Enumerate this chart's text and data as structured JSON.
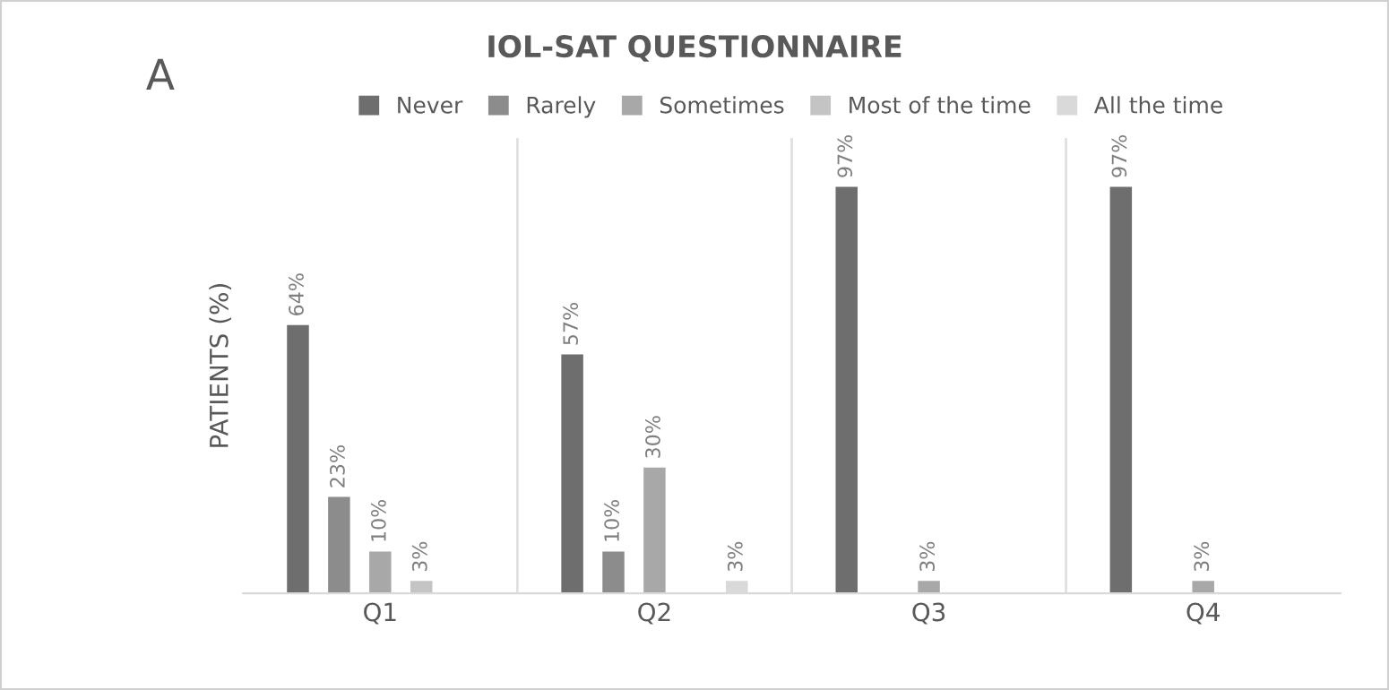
{
  "chart_data": {
    "type": "bar",
    "title": "IOL-SAT QUESTIONNAIRE",
    "ylabel": "PATIENTS (%)",
    "annotations": [
      "A"
    ],
    "categories": [
      "Q1",
      "Q2",
      "Q3",
      "Q4"
    ],
    "series": [
      {
        "name": "Never",
        "color": "#6e6e6e",
        "values": [
          64,
          57,
          97,
          97
        ],
        "value_labels": [
          "64%",
          "57%",
          "97%",
          "97%"
        ]
      },
      {
        "name": "Rarely",
        "color": "#8c8c8c",
        "values": [
          23,
          10,
          null,
          null
        ],
        "value_labels": [
          "23%",
          "10%",
          null,
          null
        ]
      },
      {
        "name": "Sometimes",
        "color": "#a8a8a8",
        "values": [
          10,
          30,
          3,
          3
        ],
        "value_labels": [
          "10%",
          "30%",
          "3%",
          "3%"
        ]
      },
      {
        "name": "Most of the time",
        "color": "#c4c4c4",
        "values": [
          3,
          null,
          null,
          null
        ],
        "value_labels": [
          "3%",
          null,
          null,
          null
        ]
      },
      {
        "name": "All the time",
        "color": "#d9d9d9",
        "values": [
          null,
          3,
          null,
          null
        ],
        "value_labels": [
          null,
          "3%",
          null,
          null
        ]
      }
    ],
    "tick_labels": "x",
    "grid": "x",
    "legend": "top"
  }
}
